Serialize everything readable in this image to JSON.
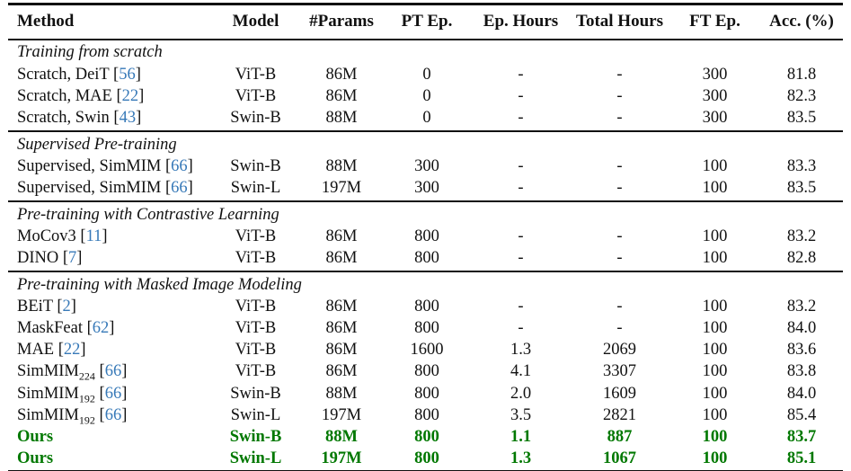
{
  "colors": {
    "text": "#111111",
    "citation_blue": "#3779b8",
    "ours_green": "#007800",
    "rule": "#111111"
  },
  "table": {
    "columns": [
      "Method",
      "Model",
      "#Params",
      "PT Ep.",
      "Ep. Hours",
      "Total Hours",
      "FT Ep.",
      "Acc. (%)"
    ],
    "sections": [
      {
        "title": "Training from scratch",
        "rows": [
          {
            "method": "Scratch, DeiT",
            "sub": "",
            "cite": "56",
            "model": "ViT-B",
            "params": "86M",
            "pt_ep": "0",
            "ep_hours": "-",
            "total_hours": "-",
            "ft_ep": "300",
            "acc": "81.8",
            "ours": false
          },
          {
            "method": "Scratch, MAE",
            "sub": "",
            "cite": "22",
            "model": "ViT-B",
            "params": "86M",
            "pt_ep": "0",
            "ep_hours": "-",
            "total_hours": "-",
            "ft_ep": "300",
            "acc": "82.3",
            "ours": false
          },
          {
            "method": "Scratch, Swin",
            "sub": "",
            "cite": "43",
            "model": "Swin-B",
            "params": "88M",
            "pt_ep": "0",
            "ep_hours": "-",
            "total_hours": "-",
            "ft_ep": "300",
            "acc": "83.5",
            "ours": false
          }
        ]
      },
      {
        "title": "Supervised Pre-training",
        "rows": [
          {
            "method": "Supervised, SimMIM",
            "sub": "",
            "cite": "66",
            "model": "Swin-B",
            "params": "88M",
            "pt_ep": "300",
            "ep_hours": "-",
            "total_hours": "-",
            "ft_ep": "100",
            "acc": "83.3",
            "ours": false
          },
          {
            "method": "Supervised, SimMIM",
            "sub": "",
            "cite": "66",
            "model": "Swin-L",
            "params": "197M",
            "pt_ep": "300",
            "ep_hours": "-",
            "total_hours": "-",
            "ft_ep": "100",
            "acc": "83.5",
            "ours": false
          }
        ]
      },
      {
        "title": "Pre-training with Contrastive Learning",
        "rows": [
          {
            "method": "MoCov3",
            "sub": "",
            "cite": "11",
            "model": "ViT-B",
            "params": "86M",
            "pt_ep": "800",
            "ep_hours": "-",
            "total_hours": "-",
            "ft_ep": "100",
            "acc": "83.2",
            "ours": false
          },
          {
            "method": "DINO",
            "sub": "",
            "cite": "7",
            "model": "ViT-B",
            "params": "86M",
            "pt_ep": "800",
            "ep_hours": "-",
            "total_hours": "-",
            "ft_ep": "100",
            "acc": "82.8",
            "ours": false
          }
        ]
      },
      {
        "title": "Pre-training with Masked Image Modeling",
        "rows": [
          {
            "method": "BEiT",
            "sub": "",
            "cite": "2",
            "model": "ViT-B",
            "params": "86M",
            "pt_ep": "800",
            "ep_hours": "-",
            "total_hours": "-",
            "ft_ep": "100",
            "acc": "83.2",
            "ours": false
          },
          {
            "method": "MaskFeat",
            "sub": "",
            "cite": "62",
            "model": "ViT-B",
            "params": "86M",
            "pt_ep": "800",
            "ep_hours": "-",
            "total_hours": "-",
            "ft_ep": "100",
            "acc": "84.0",
            "ours": false
          },
          {
            "method": "MAE",
            "sub": "",
            "cite": "22",
            "model": "ViT-B",
            "params": "86M",
            "pt_ep": "1600",
            "ep_hours": "1.3",
            "total_hours": "2069",
            "ft_ep": "100",
            "acc": "83.6",
            "ours": false
          },
          {
            "method": "SimMIM",
            "sub": "224",
            "cite": "66",
            "model": "ViT-B",
            "params": "86M",
            "pt_ep": "800",
            "ep_hours": "4.1",
            "total_hours": "3307",
            "ft_ep": "100",
            "acc": "83.8",
            "ours": false
          },
          {
            "method": "SimMIM",
            "sub": "192",
            "cite": "66",
            "model": "Swin-B",
            "params": "88M",
            "pt_ep": "800",
            "ep_hours": "2.0",
            "total_hours": "1609",
            "ft_ep": "100",
            "acc": "84.0",
            "ours": false
          },
          {
            "method": "SimMIM",
            "sub": "192",
            "cite": "66",
            "model": "Swin-L",
            "params": "197M",
            "pt_ep": "800",
            "ep_hours": "3.5",
            "total_hours": "2821",
            "ft_ep": "100",
            "acc": "85.4",
            "ours": false
          },
          {
            "method": "Ours",
            "sub": "",
            "cite": "",
            "model": "Swin-B",
            "params": "88M",
            "pt_ep": "800",
            "ep_hours": "1.1",
            "total_hours": "887",
            "ft_ep": "100",
            "acc": "83.7",
            "ours": true
          },
          {
            "method": "Ours",
            "sub": "",
            "cite": "",
            "model": "Swin-L",
            "params": "197M",
            "pt_ep": "800",
            "ep_hours": "1.3",
            "total_hours": "1067",
            "ft_ep": "100",
            "acc": "85.1",
            "ours": true
          }
        ]
      }
    ]
  }
}
